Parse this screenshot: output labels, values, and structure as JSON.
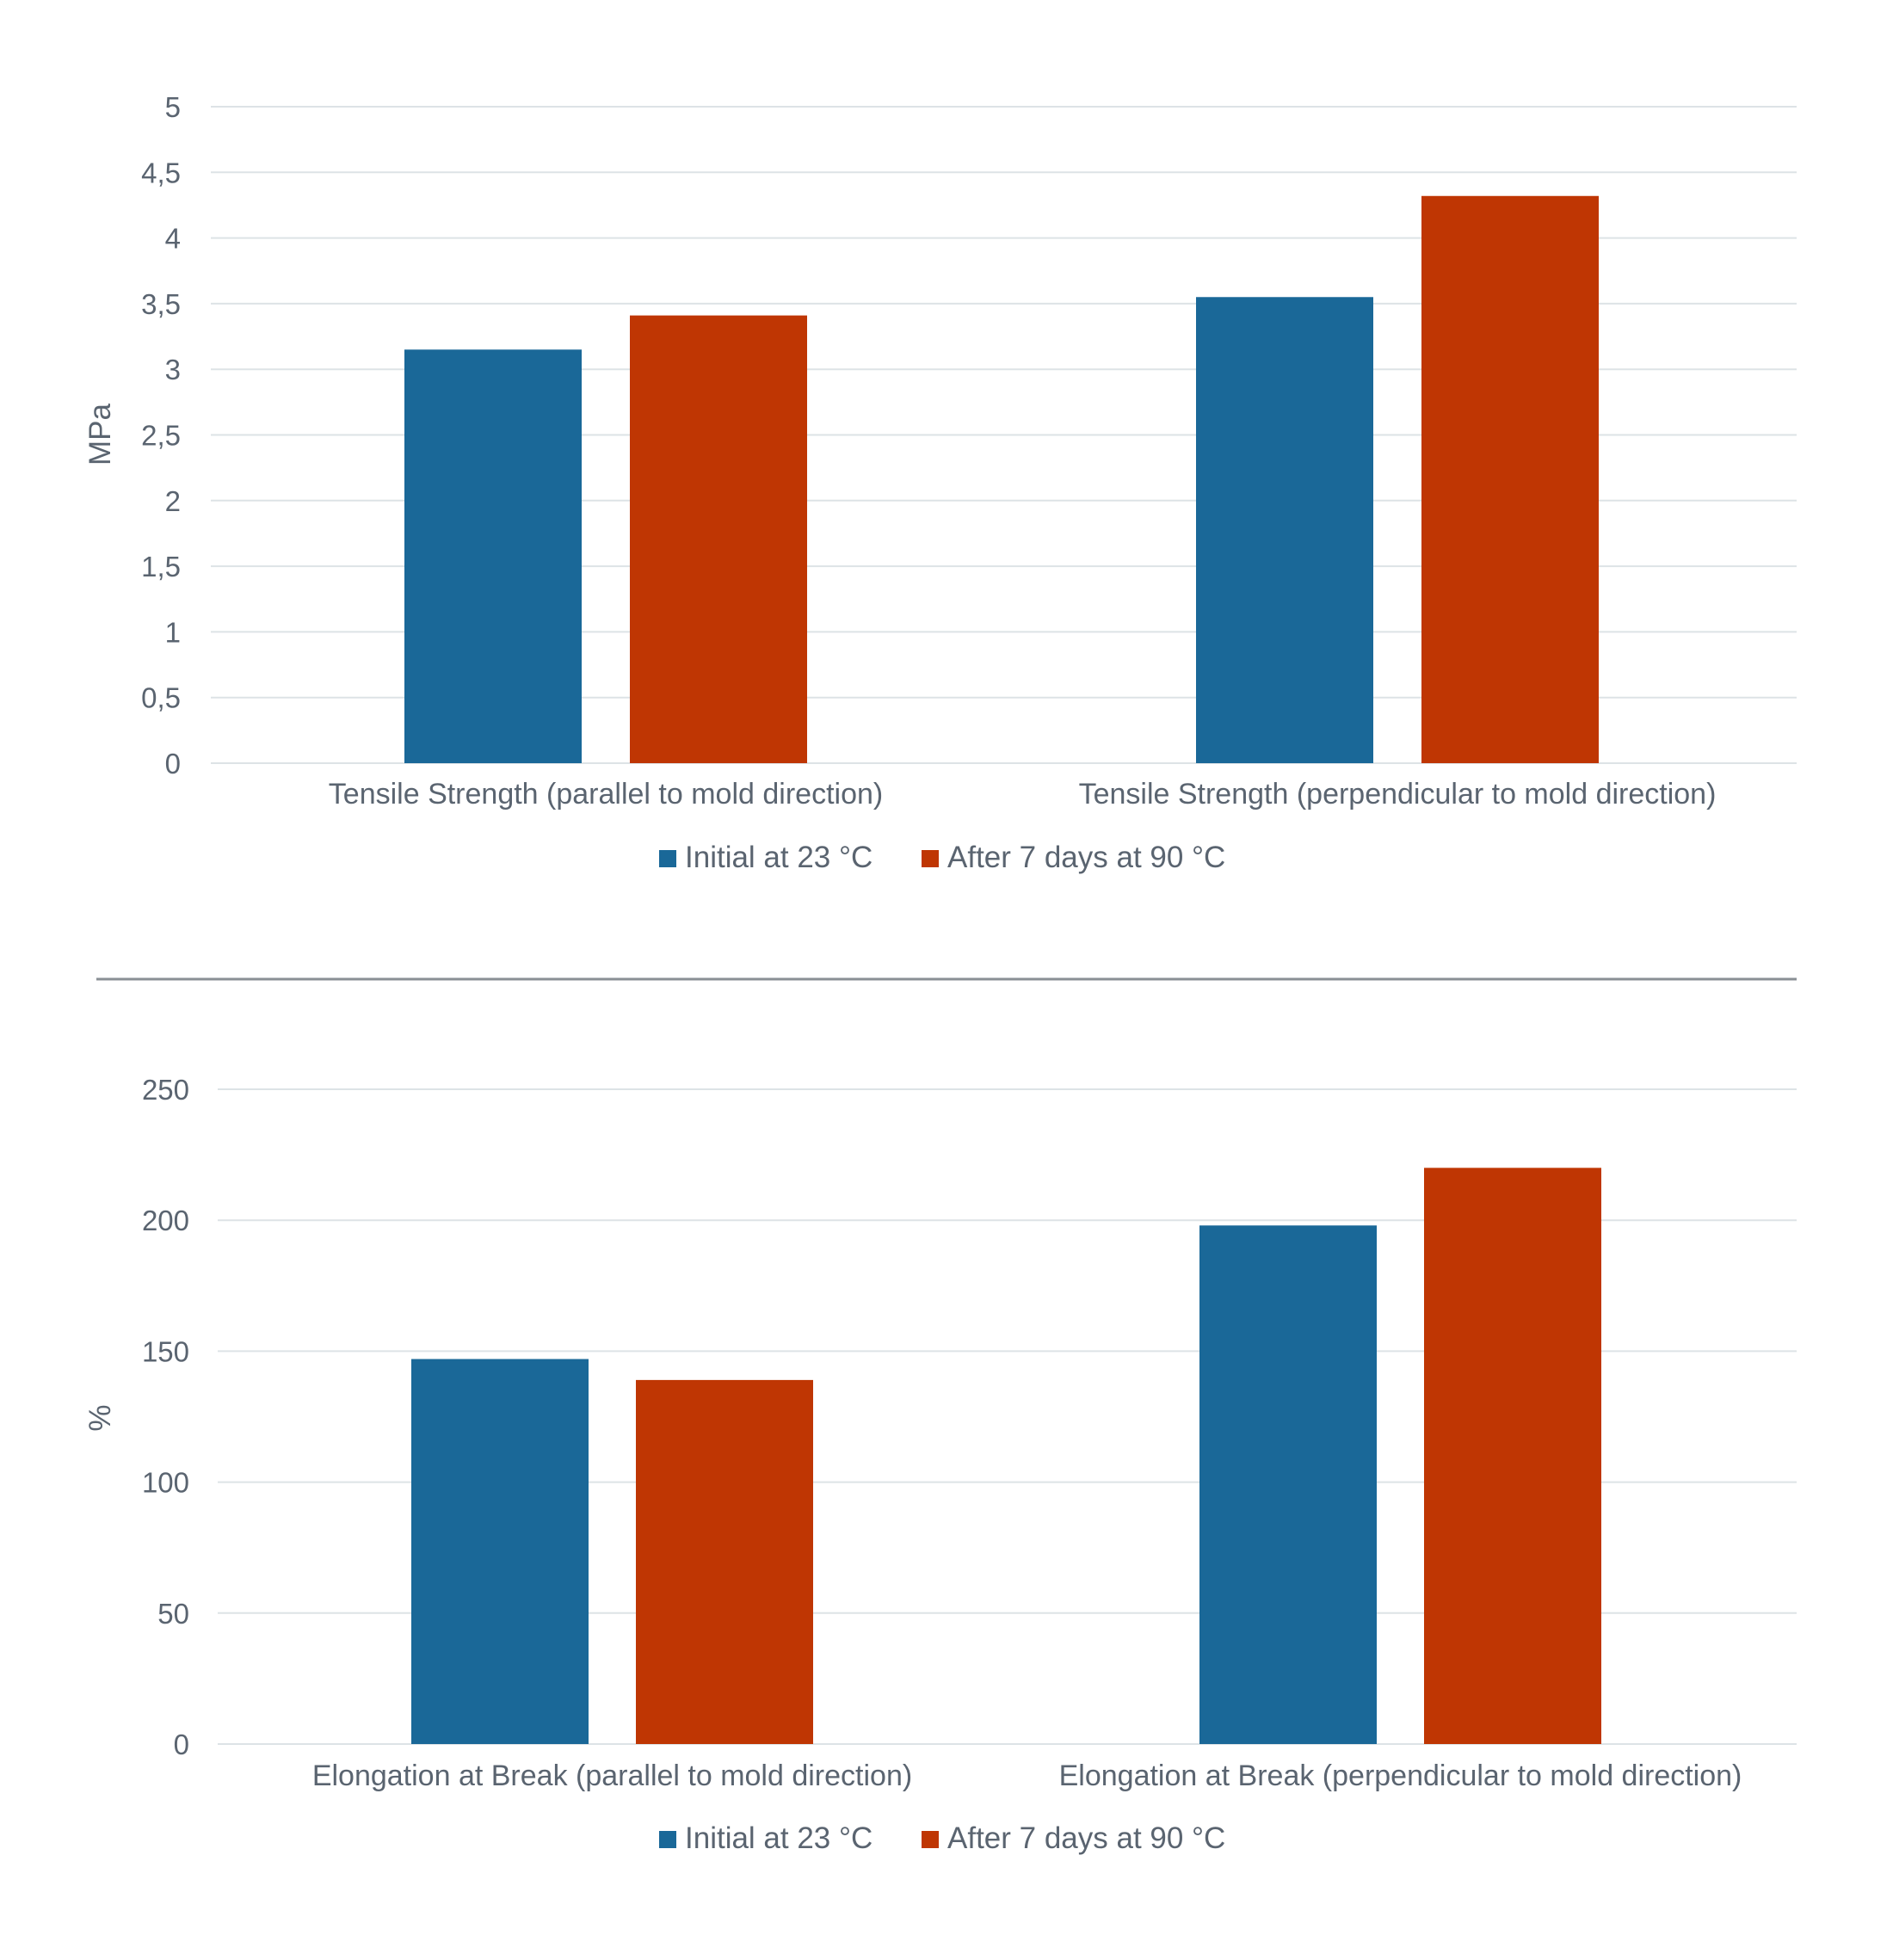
{
  "chart_data": [
    {
      "type": "bar",
      "categories": [
        "Tensile Strength (parallel to mold direction)",
        "Tensile Strength (perpendicular to mold direction)"
      ],
      "series": [
        {
          "name": "Initial at 23 °C",
          "values": [
            3.15,
            3.55
          ],
          "color": "#1a6898"
        },
        {
          "name": "After 7 days at 90 °C",
          "values": [
            3.41,
            4.32
          ],
          "color": "#bf3603"
        }
      ],
      "ylabel": "MPa",
      "ylim": [
        0,
        5
      ],
      "yticks": [
        0,
        0.5,
        1,
        1.5,
        2,
        2.5,
        3,
        3.5,
        4,
        4.5,
        5
      ],
      "ytick_labels": [
        "0",
        "0,5",
        "1",
        "1,5",
        "2",
        "2,5",
        "3",
        "3,5",
        "4",
        "4,5",
        "5"
      ],
      "grid": true,
      "legend": "bottom-center"
    },
    {
      "type": "bar",
      "categories": [
        "Elongation at Break (parallel to mold direction)",
        "Elongation at Break (perpendicular to mold direction)"
      ],
      "series": [
        {
          "name": "Initial at 23 °C",
          "values": [
            147,
            198
          ],
          "color": "#1a6898"
        },
        {
          "name": "After 7 days at 90 °C",
          "values": [
            139,
            220
          ],
          "color": "#bf3603"
        }
      ],
      "ylabel": "%",
      "ylim": [
        0,
        250
      ],
      "yticks": [
        0,
        50,
        100,
        150,
        200,
        250
      ],
      "ytick_labels": [
        "0",
        "50",
        "100",
        "150",
        "200",
        "250"
      ],
      "grid": true,
      "legend": "bottom-center"
    }
  ]
}
